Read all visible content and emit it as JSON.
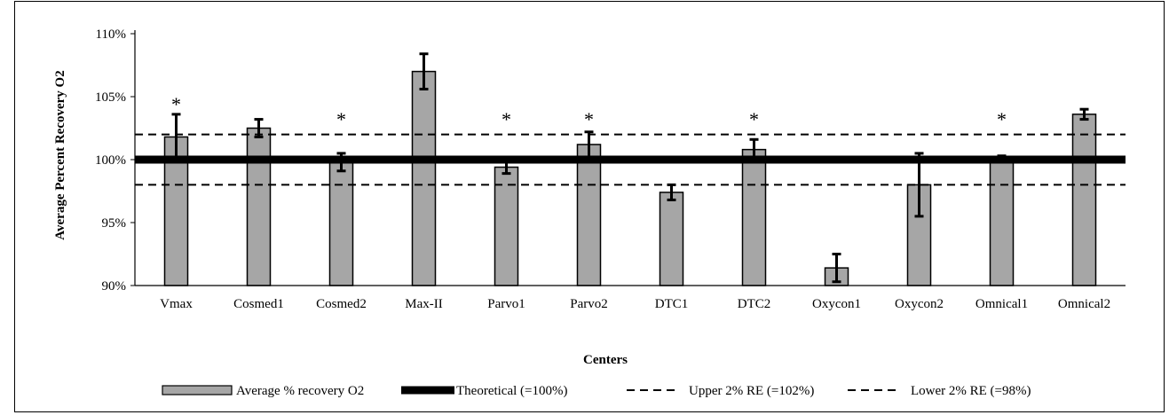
{
  "chart_data": {
    "type": "bar",
    "xlabel": "Centers",
    "ylabel": "Average Percent Recovery O2",
    "ylim": [
      90,
      110
    ],
    "yticks": [
      90,
      95,
      100,
      105,
      110
    ],
    "ytick_labels": [
      "90%",
      "95%",
      "100%",
      "105%",
      "110%"
    ],
    "categories": [
      "Vmax",
      "Cosmed1",
      "Cosmed2",
      "Max-II",
      "Parvo1",
      "Parvo2",
      "DTC1",
      "DTC2",
      "Oxycon1",
      "Oxycon2",
      "Omnical1",
      "Omnical2"
    ],
    "series": [
      {
        "name": "Average % recovery O2",
        "values": [
          101.8,
          102.5,
          99.8,
          107.0,
          99.4,
          101.2,
          97.4,
          100.8,
          91.4,
          98.0,
          100.2,
          103.6
        ],
        "error": [
          1.8,
          0.7,
          0.7,
          1.4,
          0.5,
          1.0,
          0.6,
          0.8,
          1.1,
          2.5,
          0.1,
          0.4
        ],
        "color": "#a6a6a6"
      },
      {
        "name": "Theoretical (=100%)",
        "value": 100,
        "style": "solid-thick",
        "color": "#000000"
      },
      {
        "name": "Upper 2% RE (=102%)",
        "value": 102,
        "style": "dashed",
        "color": "#000000"
      },
      {
        "name": "Lower 2% RE (=98%)",
        "value": 98,
        "style": "dashed",
        "color": "#000000"
      }
    ],
    "annotations": [
      {
        "category": "Vmax",
        "text": "*"
      },
      {
        "category": "Cosmed2",
        "text": "*"
      },
      {
        "category": "Parvo1",
        "text": "*"
      },
      {
        "category": "Parvo2",
        "text": "*"
      },
      {
        "category": "DTC2",
        "text": "*"
      },
      {
        "category": "Omnical1",
        "text": "*"
      }
    ],
    "legend_position": "bottom",
    "grid": false
  }
}
